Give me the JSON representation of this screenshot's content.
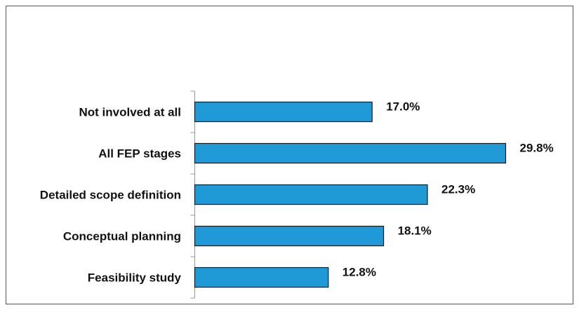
{
  "chart_data": {
    "type": "bar",
    "orientation": "horizontal",
    "categories": [
      "Not involved at all",
      "All FEP stages",
      "Detailed scope definition",
      "Conceptual planning",
      "Feasibility study"
    ],
    "values": [
      17.0,
      29.8,
      22.3,
      18.1,
      12.8
    ],
    "value_labels": [
      "17.0%",
      "29.8%",
      "22.3%",
      "18.1%",
      "12.8%"
    ],
    "unit": "%",
    "title": "",
    "xlabel": "",
    "ylabel": "",
    "xlim": [
      0,
      31
    ],
    "grid": false,
    "legend": "none",
    "bar_color": "#1f9ad6",
    "bar_edge_color": "#1a1a1a"
  }
}
